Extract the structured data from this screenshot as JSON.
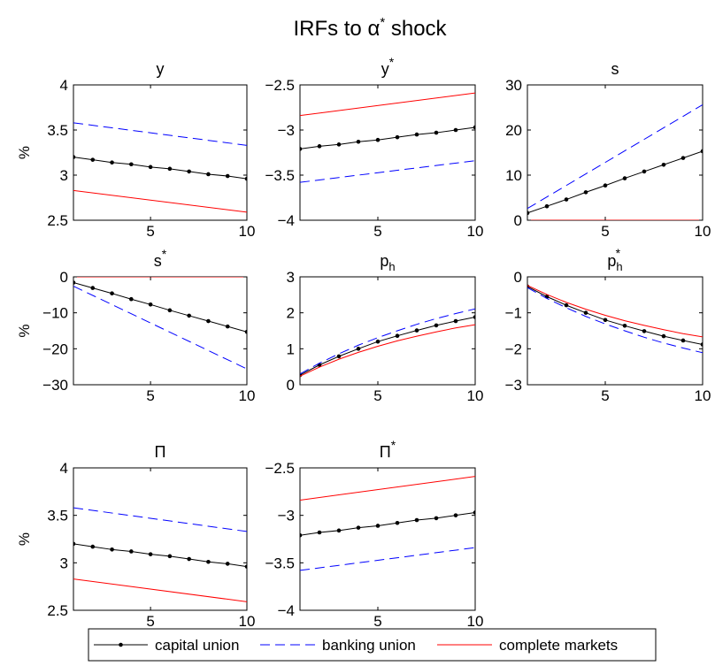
{
  "figure": {
    "title": "IRFs to α* shock"
  },
  "legend": {
    "placement": "bottom-center",
    "entries": [
      {
        "key": "capital",
        "label": "capital union"
      },
      {
        "key": "banking",
        "label": "banking union"
      },
      {
        "key": "complete",
        "label": "complete markets"
      }
    ]
  },
  "colors": {
    "capital": "#000000",
    "banking": "#0000ff",
    "complete": "#ff0000"
  },
  "chart_data": [
    {
      "type": "line",
      "title": "y",
      "ylabel": "%",
      "xlim": [
        1,
        10
      ],
      "ylim": [
        2.5,
        4
      ],
      "xticks": [
        5,
        10
      ],
      "yticks": [
        2.5,
        3,
        3.5,
        4
      ],
      "ytick_labels": [
        "2.5",
        "3",
        "3.5",
        "4"
      ],
      "series": [
        {
          "key": "capital",
          "name": "capital union",
          "style": "solid-dot",
          "x": [
            1,
            2,
            3,
            4,
            5,
            6,
            7,
            8,
            9,
            10
          ],
          "y": [
            3.2,
            3.17,
            3.14,
            3.12,
            3.09,
            3.07,
            3.04,
            3.01,
            2.99,
            2.96
          ]
        },
        {
          "key": "banking",
          "name": "banking union",
          "style": "dashed",
          "x": [
            1,
            10
          ],
          "y": [
            3.58,
            3.33
          ]
        },
        {
          "key": "complete",
          "name": "complete markets",
          "style": "solid",
          "x": [
            1,
            10
          ],
          "y": [
            2.83,
            2.59
          ]
        }
      ]
    },
    {
      "type": "line",
      "title": "y",
      "title_sup": "*",
      "ylabel": "",
      "xlim": [
        1,
        10
      ],
      "ylim": [
        -4,
        -2.5
      ],
      "xticks": [
        5,
        10
      ],
      "yticks": [
        -4,
        -3.5,
        -3,
        -2.5
      ],
      "ytick_labels": [
        "−4",
        "−3.5",
        "−3",
        "−2.5"
      ],
      "series": [
        {
          "key": "capital",
          "name": "capital union",
          "style": "solid-dot",
          "x": [
            1,
            2,
            3,
            4,
            5,
            6,
            7,
            8,
            9,
            10
          ],
          "y": [
            -3.21,
            -3.18,
            -3.16,
            -3.13,
            -3.11,
            -3.08,
            -3.05,
            -3.03,
            -3.0,
            -2.97
          ]
        },
        {
          "key": "banking",
          "name": "banking union",
          "style": "dashed",
          "x": [
            1,
            10
          ],
          "y": [
            -3.58,
            -3.34
          ]
        },
        {
          "key": "complete",
          "name": "complete markets",
          "style": "solid",
          "x": [
            1,
            10
          ],
          "y": [
            -2.84,
            -2.59
          ]
        }
      ]
    },
    {
      "type": "line",
      "title": "s",
      "ylabel": "",
      "xlim": [
        1,
        10
      ],
      "ylim": [
        0,
        30
      ],
      "xticks": [
        5,
        10
      ],
      "yticks": [
        0,
        10,
        20,
        30
      ],
      "ytick_labels": [
        "0",
        "10",
        "20",
        "30"
      ],
      "series": [
        {
          "key": "capital",
          "name": "capital union",
          "style": "solid-dot",
          "x": [
            1,
            2,
            3,
            4,
            5,
            6,
            7,
            8,
            9,
            10
          ],
          "y": [
            1.6,
            3.1,
            4.6,
            6.2,
            7.7,
            9.3,
            10.8,
            12.3,
            13.8,
            15.3
          ]
        },
        {
          "key": "banking",
          "name": "banking union",
          "style": "dashed",
          "x": [
            1,
            10
          ],
          "y": [
            2.6,
            25.6
          ]
        },
        {
          "key": "complete",
          "name": "complete markets",
          "style": "solid",
          "x": [
            1,
            10
          ],
          "y": [
            0,
            0
          ]
        }
      ]
    },
    {
      "type": "line",
      "title": "s",
      "title_sup": "*",
      "ylabel": "%",
      "xlim": [
        1,
        10
      ],
      "ylim": [
        -30,
        0
      ],
      "xticks": [
        5,
        10
      ],
      "yticks": [
        -30,
        -20,
        -10,
        0
      ],
      "ytick_labels": [
        "−30",
        "−20",
        "−10",
        "0"
      ],
      "series": [
        {
          "key": "capital",
          "name": "capital union",
          "style": "solid-dot",
          "x": [
            1,
            2,
            3,
            4,
            5,
            6,
            7,
            8,
            9,
            10
          ],
          "y": [
            -1.6,
            -3.1,
            -4.6,
            -6.2,
            -7.7,
            -9.3,
            -10.8,
            -12.3,
            -13.8,
            -15.3
          ]
        },
        {
          "key": "banking",
          "name": "banking union",
          "style": "dashed",
          "x": [
            1,
            10
          ],
          "y": [
            -2.6,
            -25.6
          ]
        },
        {
          "key": "complete",
          "name": "complete markets",
          "style": "solid",
          "x": [
            1,
            10
          ],
          "y": [
            0,
            0
          ]
        }
      ]
    },
    {
      "type": "line",
      "title": "p",
      "title_sub": "h",
      "ylabel": "",
      "xlim": [
        1,
        10
      ],
      "ylim": [
        0,
        3
      ],
      "xticks": [
        5,
        10
      ],
      "yticks": [
        0,
        1,
        2,
        3
      ],
      "ytick_labels": [
        "0",
        "1",
        "2",
        "3"
      ],
      "series": [
        {
          "key": "capital",
          "name": "capital union",
          "style": "solid-dot",
          "x": [
            1,
            2,
            3,
            4,
            5,
            6,
            7,
            8,
            9,
            10
          ],
          "y": [
            0.27,
            0.55,
            0.79,
            1.0,
            1.2,
            1.36,
            1.51,
            1.65,
            1.77,
            1.88
          ]
        },
        {
          "key": "banking",
          "name": "banking union",
          "style": "dashed",
          "x": [
            1,
            2,
            3,
            4,
            5,
            6,
            7,
            8,
            9,
            10
          ],
          "y": [
            0.3,
            0.6,
            0.86,
            1.1,
            1.31,
            1.5,
            1.68,
            1.84,
            1.98,
            2.11
          ]
        },
        {
          "key": "complete",
          "name": "complete markets",
          "style": "solid",
          "x": [
            1,
            2,
            3,
            4,
            5,
            6,
            7,
            8,
            9,
            10
          ],
          "y": [
            0.24,
            0.49,
            0.71,
            0.9,
            1.07,
            1.22,
            1.35,
            1.47,
            1.58,
            1.67
          ]
        }
      ]
    },
    {
      "type": "line",
      "title": "p",
      "title_sub": "h",
      "title_sup": "*",
      "ylabel": "",
      "xlim": [
        1,
        10
      ],
      "ylim": [
        -3,
        0
      ],
      "xticks": [
        5,
        10
      ],
      "yticks": [
        -3,
        -2,
        -1,
        0
      ],
      "ytick_labels": [
        "−3",
        "−2",
        "−1",
        "0"
      ],
      "series": [
        {
          "key": "capital",
          "name": "capital union",
          "style": "solid-dot",
          "x": [
            1,
            2,
            3,
            4,
            5,
            6,
            7,
            8,
            9,
            10
          ],
          "y": [
            -0.27,
            -0.55,
            -0.79,
            -1.0,
            -1.2,
            -1.36,
            -1.51,
            -1.65,
            -1.77,
            -1.88
          ]
        },
        {
          "key": "banking",
          "name": "banking union",
          "style": "dashed",
          "x": [
            1,
            2,
            3,
            4,
            5,
            6,
            7,
            8,
            9,
            10
          ],
          "y": [
            -0.3,
            -0.6,
            -0.86,
            -1.1,
            -1.31,
            -1.5,
            -1.68,
            -1.84,
            -1.98,
            -2.11
          ]
        },
        {
          "key": "complete",
          "name": "complete markets",
          "style": "solid",
          "x": [
            1,
            2,
            3,
            4,
            5,
            6,
            7,
            8,
            9,
            10
          ],
          "y": [
            -0.24,
            -0.49,
            -0.71,
            -0.9,
            -1.07,
            -1.22,
            -1.35,
            -1.47,
            -1.58,
            -1.67
          ]
        }
      ]
    },
    {
      "type": "line",
      "title": "Π",
      "ylabel": "%",
      "xlim": [
        1,
        10
      ],
      "ylim": [
        2.5,
        4
      ],
      "xticks": [
        5,
        10
      ],
      "yticks": [
        2.5,
        3,
        3.5,
        4
      ],
      "ytick_labels": [
        "2.5",
        "3",
        "3.5",
        "4"
      ],
      "series": [
        {
          "key": "capital",
          "name": "capital union",
          "style": "solid-dot",
          "x": [
            1,
            2,
            3,
            4,
            5,
            6,
            7,
            8,
            9,
            10
          ],
          "y": [
            3.2,
            3.17,
            3.14,
            3.12,
            3.09,
            3.07,
            3.04,
            3.01,
            2.99,
            2.96
          ]
        },
        {
          "key": "banking",
          "name": "banking union",
          "style": "dashed",
          "x": [
            1,
            10
          ],
          "y": [
            3.58,
            3.33
          ]
        },
        {
          "key": "complete",
          "name": "complete markets",
          "style": "solid",
          "x": [
            1,
            10
          ],
          "y": [
            2.83,
            2.59
          ]
        }
      ]
    },
    {
      "type": "line",
      "title": "Π",
      "title_sup": "*",
      "ylabel": "",
      "xlim": [
        1,
        10
      ],
      "ylim": [
        -4,
        -2.5
      ],
      "xticks": [
        5,
        10
      ],
      "yticks": [
        -4,
        -3.5,
        -3,
        -2.5
      ],
      "ytick_labels": [
        "−4",
        "−3.5",
        "−3",
        "−2.5"
      ],
      "series": [
        {
          "key": "capital",
          "name": "capital union",
          "style": "solid-dot",
          "x": [
            1,
            2,
            3,
            4,
            5,
            6,
            7,
            8,
            9,
            10
          ],
          "y": [
            -3.21,
            -3.18,
            -3.16,
            -3.13,
            -3.11,
            -3.08,
            -3.05,
            -3.03,
            -3.0,
            -2.97
          ]
        },
        {
          "key": "banking",
          "name": "banking union",
          "style": "dashed",
          "x": [
            1,
            10
          ],
          "y": [
            -3.58,
            -3.34
          ]
        },
        {
          "key": "complete",
          "name": "complete markets",
          "style": "solid",
          "x": [
            1,
            10
          ],
          "y": [
            -2.84,
            -2.59
          ]
        }
      ]
    }
  ]
}
